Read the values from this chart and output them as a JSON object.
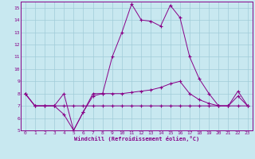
{
  "xlabel": "Windchill (Refroidissement éolien,°C)",
  "xlim": [
    -0.5,
    23.5
  ],
  "ylim": [
    5,
    15.5
  ],
  "yticks": [
    5,
    6,
    7,
    8,
    9,
    10,
    11,
    12,
    13,
    14,
    15
  ],
  "xticks": [
    0,
    1,
    2,
    3,
    4,
    5,
    6,
    7,
    8,
    9,
    10,
    11,
    12,
    13,
    14,
    15,
    16,
    17,
    18,
    19,
    20,
    21,
    22,
    23
  ],
  "bg_color": "#c8e8f0",
  "grid_color": "#a0ccd8",
  "line_color": "#880088",
  "line1_y": [
    8.0,
    7.0,
    7.0,
    7.0,
    7.0,
    7.0,
    7.0,
    7.0,
    7.0,
    7.0,
    7.0,
    7.0,
    7.0,
    7.0,
    7.0,
    7.0,
    7.0,
    7.0,
    7.0,
    7.0,
    7.0,
    7.0,
    7.0,
    7.0
  ],
  "line2_y": [
    8.0,
    7.0,
    7.0,
    7.0,
    8.0,
    5.0,
    6.5,
    8.0,
    8.0,
    11.0,
    13.0,
    15.3,
    14.0,
    13.9,
    13.5,
    15.2,
    14.2,
    11.0,
    9.2,
    8.0,
    7.0,
    7.0,
    8.2,
    7.0
  ],
  "line3_y": [
    8.0,
    7.0,
    7.0,
    7.0,
    6.3,
    5.0,
    6.5,
    7.8,
    8.0,
    8.0,
    8.0,
    8.1,
    8.2,
    8.3,
    8.5,
    8.8,
    9.0,
    8.0,
    7.5,
    7.2,
    7.0,
    7.0,
    7.8,
    7.0
  ]
}
